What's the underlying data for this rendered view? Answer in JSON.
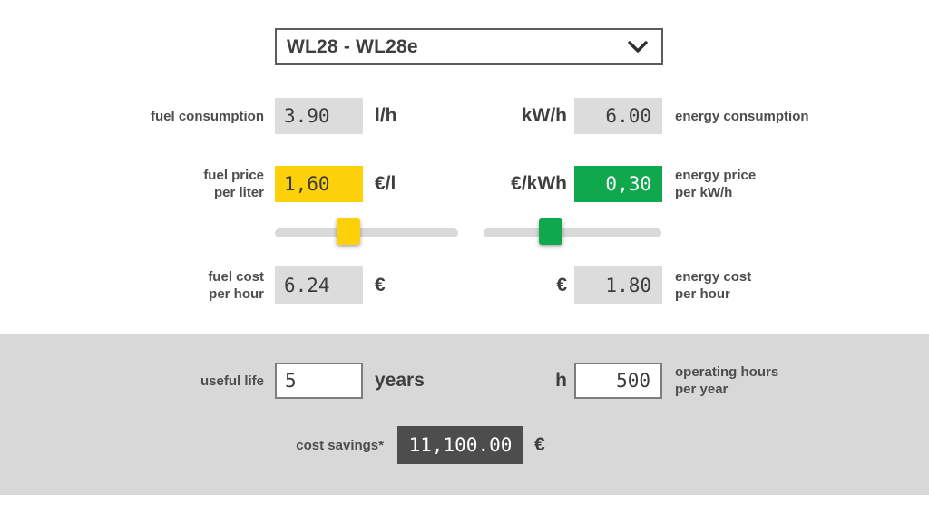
{
  "colors": {
    "yellow": "#fcd10a",
    "green": "#0fa84c",
    "box_gray": "#dcdcdc",
    "section_gray": "#d8d8d8",
    "dark_box": "#4d4d4d",
    "label": "#4d4d4d",
    "value": "#3c3c3c"
  },
  "model_selector": {
    "value": "WL28 - WL28e",
    "chevron_icon": "chevron-down"
  },
  "fuel": {
    "consumption_label": "fuel consumption",
    "consumption_value": "3.90",
    "consumption_unit": "l/h",
    "price_label": "fuel price\nper liter",
    "price_value": "1,60",
    "price_unit": "€/l",
    "slider_percent": 40,
    "cost_label": "fuel cost\nper hour",
    "cost_value": "6.24",
    "cost_unit": "€"
  },
  "energy": {
    "consumption_unit": "kW/h",
    "consumption_value": "6.00",
    "consumption_label": "energy consumption",
    "price_unit": "€/kWh",
    "price_value": "0,30",
    "price_label": "energy price\nper kW/h",
    "slider_percent": 38,
    "cost_unit": "€",
    "cost_value": "1.80",
    "cost_label": "energy cost\nper hour"
  },
  "bottom": {
    "useful_life_label": "useful life",
    "useful_life_value": "5",
    "useful_life_unit": "years",
    "hours_unit": "h",
    "hours_value": "500",
    "hours_label": "operating hours\nper year",
    "savings_label": "cost savings*",
    "savings_value": "11,100.00",
    "savings_unit": "€"
  }
}
